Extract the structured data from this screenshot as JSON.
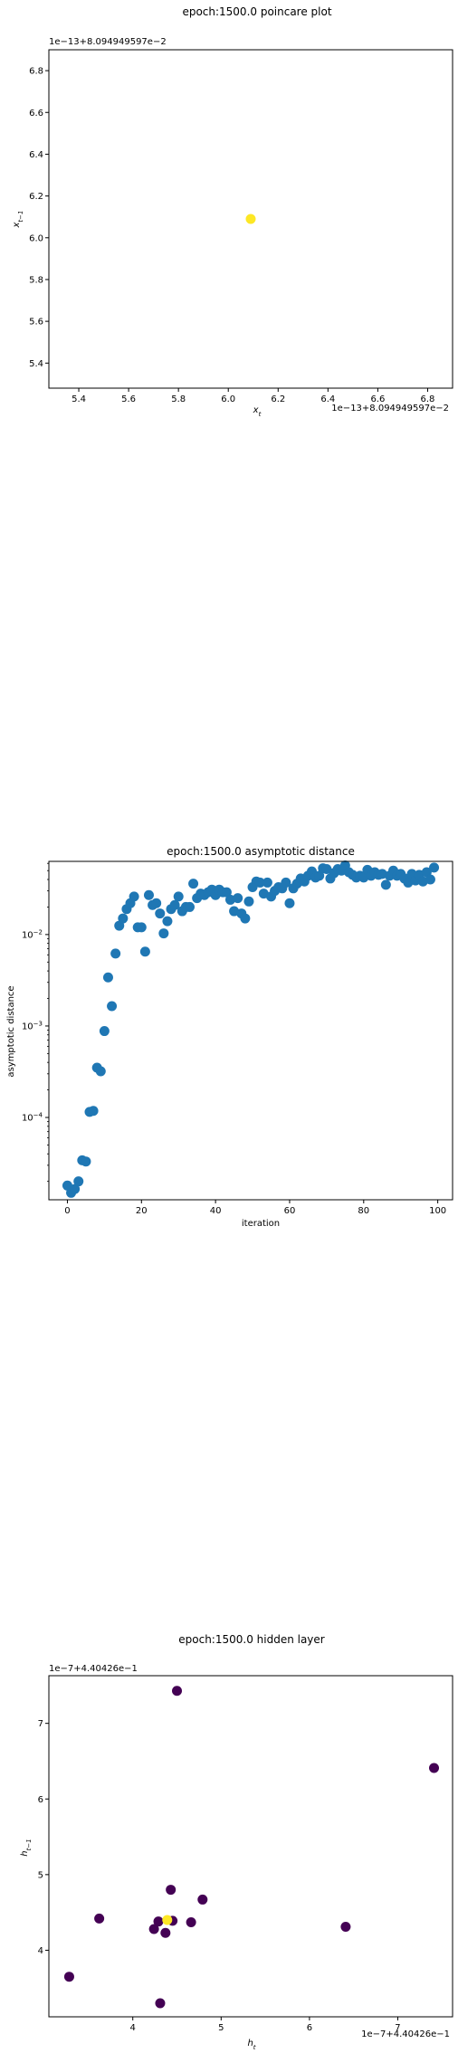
{
  "charts": [
    {
      "type": "scatter",
      "title": "epoch:1500.0 poincare plot",
      "xlabel": "x_t",
      "ylabel": "x_{t-1}",
      "x_offset_text": "1e−13+8.094949597e−2",
      "y_offset_text": "1e−13+8.094949597e−2",
      "xlim": [
        5.28,
        6.9
      ],
      "ylim": [
        5.28,
        6.9
      ],
      "xticks": [
        "5.4",
        "5.6",
        "5.8",
        "6.0",
        "6.2",
        "6.4",
        "6.6",
        "6.8"
      ],
      "xtick_values": [
        5.4,
        5.6,
        5.8,
        6.0,
        6.2,
        6.4,
        6.6,
        6.8
      ],
      "yticks": [
        "5.4",
        "5.6",
        "5.8",
        "6.0",
        "6.2",
        "6.4",
        "6.6",
        "6.8"
      ],
      "ytick_values": [
        5.4,
        5.6,
        5.8,
        6.0,
        6.2,
        6.4,
        6.6,
        6.8
      ],
      "marker_color": "#fde725",
      "points": [
        {
          "x": 6.09,
          "y": 6.09
        }
      ],
      "grid": false
    },
    {
      "type": "scatter",
      "title": "epoch:1500.0 asymptotic distance",
      "xlabel": "iteration",
      "ylabel": "asymptotic distance",
      "yscale": "log",
      "xlim": [
        -5,
        104
      ],
      "ylim_log10": [
        -4.9,
        -1.2
      ],
      "xticks": [
        "0",
        "20",
        "40",
        "60",
        "80",
        "100"
      ],
      "xtick_values": [
        0,
        20,
        40,
        60,
        80,
        100
      ],
      "yticks": [
        {
          "base": "10",
          "exp": "−2",
          "value": 0.01
        },
        {
          "base": "10",
          "exp": "−3",
          "value": 0.001
        },
        {
          "base": "10",
          "exp": "−4",
          "value": 0.0001
        }
      ],
      "marker_color": "#1f77b4",
      "x": [
        0,
        1,
        2,
        3,
        4,
        5,
        6,
        7,
        8,
        9,
        10,
        11,
        12,
        13,
        14,
        15,
        16,
        17,
        18,
        19,
        20,
        21,
        22,
        23,
        24,
        25,
        26,
        27,
        28,
        29,
        30,
        31,
        32,
        33,
        34,
        35,
        36,
        37,
        38,
        39,
        40,
        41,
        42,
        43,
        44,
        45,
        46,
        47,
        48,
        49,
        50,
        51,
        52,
        53,
        54,
        55,
        56,
        57,
        58,
        59,
        60,
        61,
        62,
        63,
        64,
        65,
        66,
        67,
        68,
        69,
        70,
        71,
        72,
        73,
        74,
        75,
        76,
        77,
        78,
        79,
        80,
        81,
        82,
        83,
        84,
        85,
        86,
        87,
        88,
        89,
        90,
        91,
        92,
        93,
        94,
        95,
        96,
        97,
        98,
        99
      ],
      "y": [
        1.8e-05,
        1.5e-05,
        1.65e-05,
        2e-05,
        3.4e-05,
        3.3e-05,
        0.000115,
        0.000118,
        0.00035,
        0.00032,
        0.00088,
        0.0034,
        0.00165,
        0.0062,
        0.0125,
        0.015,
        0.019,
        0.022,
        0.026,
        0.012,
        0.012,
        0.0065,
        0.027,
        0.021,
        0.022,
        0.017,
        0.0103,
        0.014,
        0.019,
        0.021,
        0.026,
        0.018,
        0.02,
        0.02,
        0.036,
        0.025,
        0.028,
        0.027,
        0.029,
        0.031,
        0.027,
        0.031,
        0.029,
        0.029,
        0.024,
        0.018,
        0.025,
        0.017,
        0.015,
        0.023,
        0.033,
        0.038,
        0.037,
        0.028,
        0.037,
        0.026,
        0.03,
        0.033,
        0.032,
        0.037,
        0.022,
        0.032,
        0.036,
        0.041,
        0.038,
        0.044,
        0.049,
        0.042,
        0.044,
        0.053,
        0.052,
        0.041,
        0.047,
        0.052,
        0.05,
        0.057,
        0.048,
        0.045,
        0.042,
        0.044,
        0.042,
        0.051,
        0.044,
        0.048,
        0.045,
        0.046,
        0.035,
        0.044,
        0.05,
        0.044,
        0.046,
        0.041,
        0.037,
        0.046,
        0.039,
        0.045,
        0.038,
        0.048,
        0.04,
        0.054
      ]
    },
    {
      "type": "scatter",
      "title": "epoch:1500.0 hidden layer",
      "xlabel": "h_t",
      "ylabel": "h_{t-1}",
      "x_offset_text": "1e−7+4.40426e−1",
      "y_offset_text": "1e−7+4.40426e−1",
      "xlim": [
        3.05,
        7.62
      ],
      "ylim": [
        3.12,
        7.63
      ],
      "xticks": [
        "4",
        "5",
        "6",
        "7"
      ],
      "xtick_values": [
        4,
        5,
        6,
        7
      ],
      "yticks": [
        "4",
        "5",
        "6",
        "7"
      ],
      "ytick_values": [
        4,
        5,
        6,
        7
      ],
      "colors": {
        "purple": "#440154",
        "yellow": "#fde725"
      },
      "points": [
        {
          "x": 4.5,
          "y": 7.43,
          "c": "purple"
        },
        {
          "x": 7.41,
          "y": 6.41,
          "c": "purple"
        },
        {
          "x": 3.62,
          "y": 4.42,
          "c": "purple"
        },
        {
          "x": 3.28,
          "y": 3.65,
          "c": "purple"
        },
        {
          "x": 4.43,
          "y": 4.8,
          "c": "purple"
        },
        {
          "x": 4.79,
          "y": 4.67,
          "c": "purple"
        },
        {
          "x": 6.41,
          "y": 4.31,
          "c": "purple"
        },
        {
          "x": 4.66,
          "y": 4.37,
          "c": "purple"
        },
        {
          "x": 4.24,
          "y": 4.28,
          "c": "purple"
        },
        {
          "x": 4.29,
          "y": 4.38,
          "c": "purple"
        },
        {
          "x": 4.37,
          "y": 4.23,
          "c": "purple"
        },
        {
          "x": 4.31,
          "y": 3.3,
          "c": "purple"
        },
        {
          "x": 4.45,
          "y": 4.39,
          "c": "purple"
        },
        {
          "x": 4.39,
          "y": 4.4,
          "c": "yellow"
        }
      ]
    }
  ]
}
